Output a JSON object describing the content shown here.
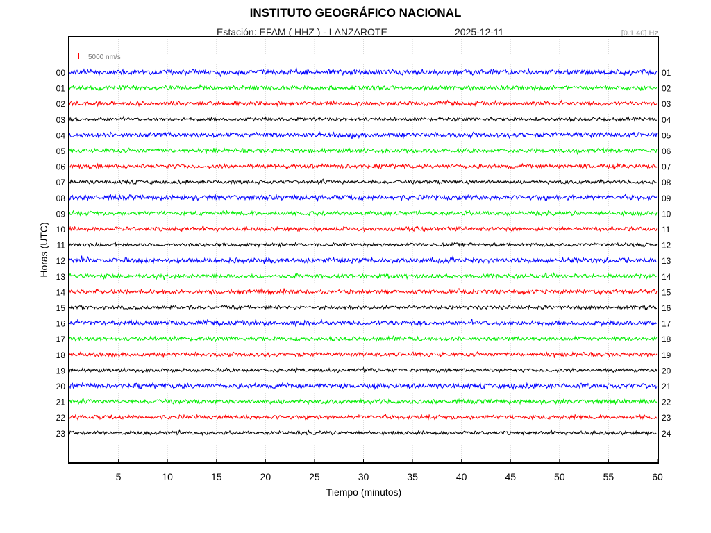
{
  "header": {
    "title": "INSTITUTO GEOGRÁFICO NACIONAL",
    "station": "Estación:  EFAM ( HHZ ) - LANZAROTE",
    "date": "2025-12-11",
    "filter": "[0.1 40] Hz"
  },
  "chart_data": {
    "type": "line",
    "title": "INSTITUTO GEOGRÁFICO NACIONAL",
    "xlabel": "Tiempo (minutos)",
    "ylabel": "Horas (UTC)",
    "xlim": [
      0,
      60
    ],
    "x_ticks": [
      5,
      10,
      15,
      20,
      25,
      30,
      35,
      40,
      45,
      50,
      55,
      60
    ],
    "scale_label": "5000 nm/s",
    "scale_color": "#ff0000",
    "grid": true,
    "left_hour_labels": [
      "00",
      "01",
      "02",
      "03",
      "04",
      "05",
      "06",
      "07",
      "08",
      "09",
      "10",
      "11",
      "12",
      "13",
      "14",
      "15",
      "16",
      "17",
      "18",
      "19",
      "20",
      "21",
      "22",
      "23"
    ],
    "right_hour_labels": [
      "01",
      "02",
      "03",
      "04",
      "05",
      "06",
      "07",
      "08",
      "09",
      "10",
      "11",
      "12",
      "13",
      "14",
      "15",
      "16",
      "17",
      "18",
      "19",
      "20",
      "21",
      "22",
      "23",
      "24"
    ],
    "trace_colors": [
      "#0000ff",
      "#00ee00",
      "#ff0000",
      "#000000"
    ]
  }
}
